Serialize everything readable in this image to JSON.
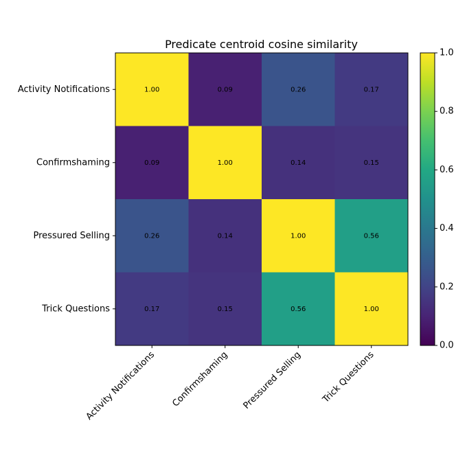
{
  "chart_data": {
    "type": "heatmap",
    "title": "Predicate centroid cosine similarity",
    "row_labels": [
      "Activity Notifications",
      "Confirmshaming",
      "Pressured Selling",
      "Trick Questions"
    ],
    "col_labels": [
      "Activity Notifications",
      "Confirmshaming",
      "Pressured Selling",
      "Trick Questions"
    ],
    "values": [
      [
        1.0,
        0.09,
        0.26,
        0.17
      ],
      [
        0.09,
        1.0,
        0.14,
        0.15
      ],
      [
        0.26,
        0.14,
        1.0,
        0.56
      ],
      [
        0.17,
        0.15,
        0.56,
        1.0
      ]
    ],
    "cell_labels": [
      [
        "1.00",
        "0.09",
        "0.26",
        "0.17"
      ],
      [
        "0.09",
        "1.00",
        "0.14",
        "0.15"
      ],
      [
        "0.26",
        "0.14",
        "1.00",
        "0.56"
      ],
      [
        "0.17",
        "0.15",
        "0.56",
        "1.00"
      ]
    ],
    "colormap": "viridis",
    "vmin": 0.0,
    "vmax": 1.0,
    "colorbar_ticks": [
      "0.0",
      "0.2",
      "0.4",
      "0.6",
      "0.8",
      "1.0"
    ],
    "grid": false
  }
}
